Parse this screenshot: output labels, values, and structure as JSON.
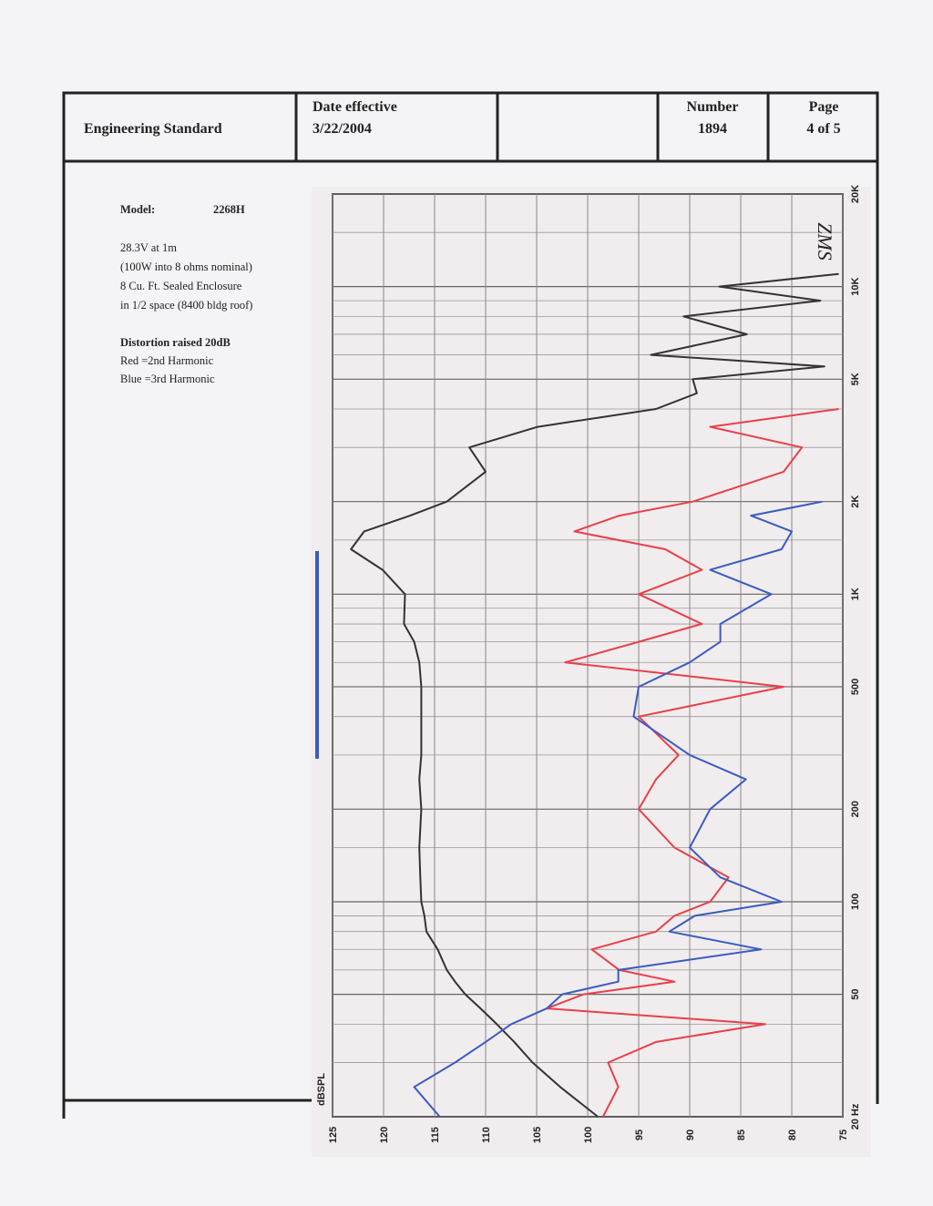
{
  "header": {
    "title": "Engineering Standard",
    "date_label": "Date effective",
    "date": "3/22/2004",
    "number_label": "Number",
    "number": "1894",
    "page_label": "Page",
    "page": "4 of 5"
  },
  "notes": {
    "model_label": "Model:",
    "model": "2268H",
    "lines": [
      "28.3V at 1m",
      "(100W into 8 ohms nominal)",
      "8 Cu. Ft. Sealed Enclosure",
      "in 1/2 space (8400 bldg roof)"
    ],
    "distortion": "Distortion raised 20dB",
    "legend": [
      "Red =2nd Harmonic",
      "Blue =3rd Harmonic"
    ]
  },
  "chart_data": {
    "type": "line",
    "annotation": "ZMS",
    "ylabel": "dBSPL",
    "x_log": true,
    "xlim": [
      20,
      20000
    ],
    "xticks": [
      {
        "value": 20,
        "label": "20 Hz"
      },
      50,
      100,
      200,
      500,
      {
        "value": 1000,
        "label": "1K"
      },
      {
        "value": 2000,
        "label": "2K"
      },
      {
        "value": 5000,
        "label": "5K"
      },
      {
        "value": 10000,
        "label": "10K"
      },
      {
        "value": 20000,
        "label": "20K"
      }
    ],
    "x_minor_ticks": [
      30,
      40,
      60,
      70,
      80,
      90,
      150,
      300,
      400,
      600,
      700,
      800,
      900,
      1500,
      3000,
      4000,
      6000,
      7000,
      8000,
      9000,
      15000
    ],
    "ylim": [
      125,
      75
    ],
    "yticks": [
      125,
      120,
      115,
      110,
      105,
      100,
      95,
      90,
      85,
      80,
      75
    ],
    "grid": true,
    "x": [
      20,
      25,
      30,
      35,
      40,
      45,
      50,
      55,
      60,
      70,
      80,
      90,
      100,
      120,
      150,
      200,
      250,
      300,
      400,
      500,
      600,
      700,
      800,
      1000,
      1200,
      1400,
      1600,
      1800,
      2000,
      2500,
      3000,
      3500,
      4000,
      4500,
      5000,
      5500,
      6000,
      7000,
      8000,
      9000,
      10000,
      11000
    ],
    "series": [
      {
        "color": "#333333",
        "values": [
          99,
          102.7,
          105.4,
          107.2,
          108.9,
          110.5,
          112,
          113,
          113.8,
          114.7,
          115.8,
          116,
          116.3,
          116.4,
          116.5,
          116.3,
          116.5,
          116.3,
          116.3,
          116.3,
          116.5,
          117,
          118,
          117.9,
          120.1,
          123.2,
          121.9,
          117.4,
          113.8,
          110,
          111.6,
          104.9,
          93.3,
          89.3,
          89.7,
          76.8,
          93.8,
          84.4,
          90.6,
          77.2,
          87.1,
          75.4
        ]
      },
      {
        "color": "#e8404a",
        "values": [
          98.5,
          97,
          98,
          93.3,
          82.6,
          104,
          100.4,
          91.5,
          96.9,
          99.6,
          93.3,
          91.5,
          88,
          86.2,
          91.5,
          95,
          93.3,
          91.1,
          95,
          80.8,
          102.2,
          95,
          88.8,
          95,
          88.8,
          92.4,
          101.3,
          96.9,
          89.7,
          80.8,
          79,
          88,
          75.4,
          null,
          null,
          null,
          null,
          null,
          null,
          null,
          null,
          null
        ]
      },
      {
        "color": "#3a5cc0",
        "values": [
          114.5,
          117,
          113,
          110,
          107.5,
          104,
          102.5,
          97,
          97,
          83,
          92,
          89.5,
          81,
          87,
          90,
          88,
          84.5,
          90,
          95.5,
          95,
          90,
          87,
          87,
          82,
          88,
          81,
          80,
          84,
          77,
          null,
          null,
          null,
          null,
          null,
          null,
          null,
          null,
          null,
          null,
          null,
          null,
          null
        ]
      }
    ]
  }
}
